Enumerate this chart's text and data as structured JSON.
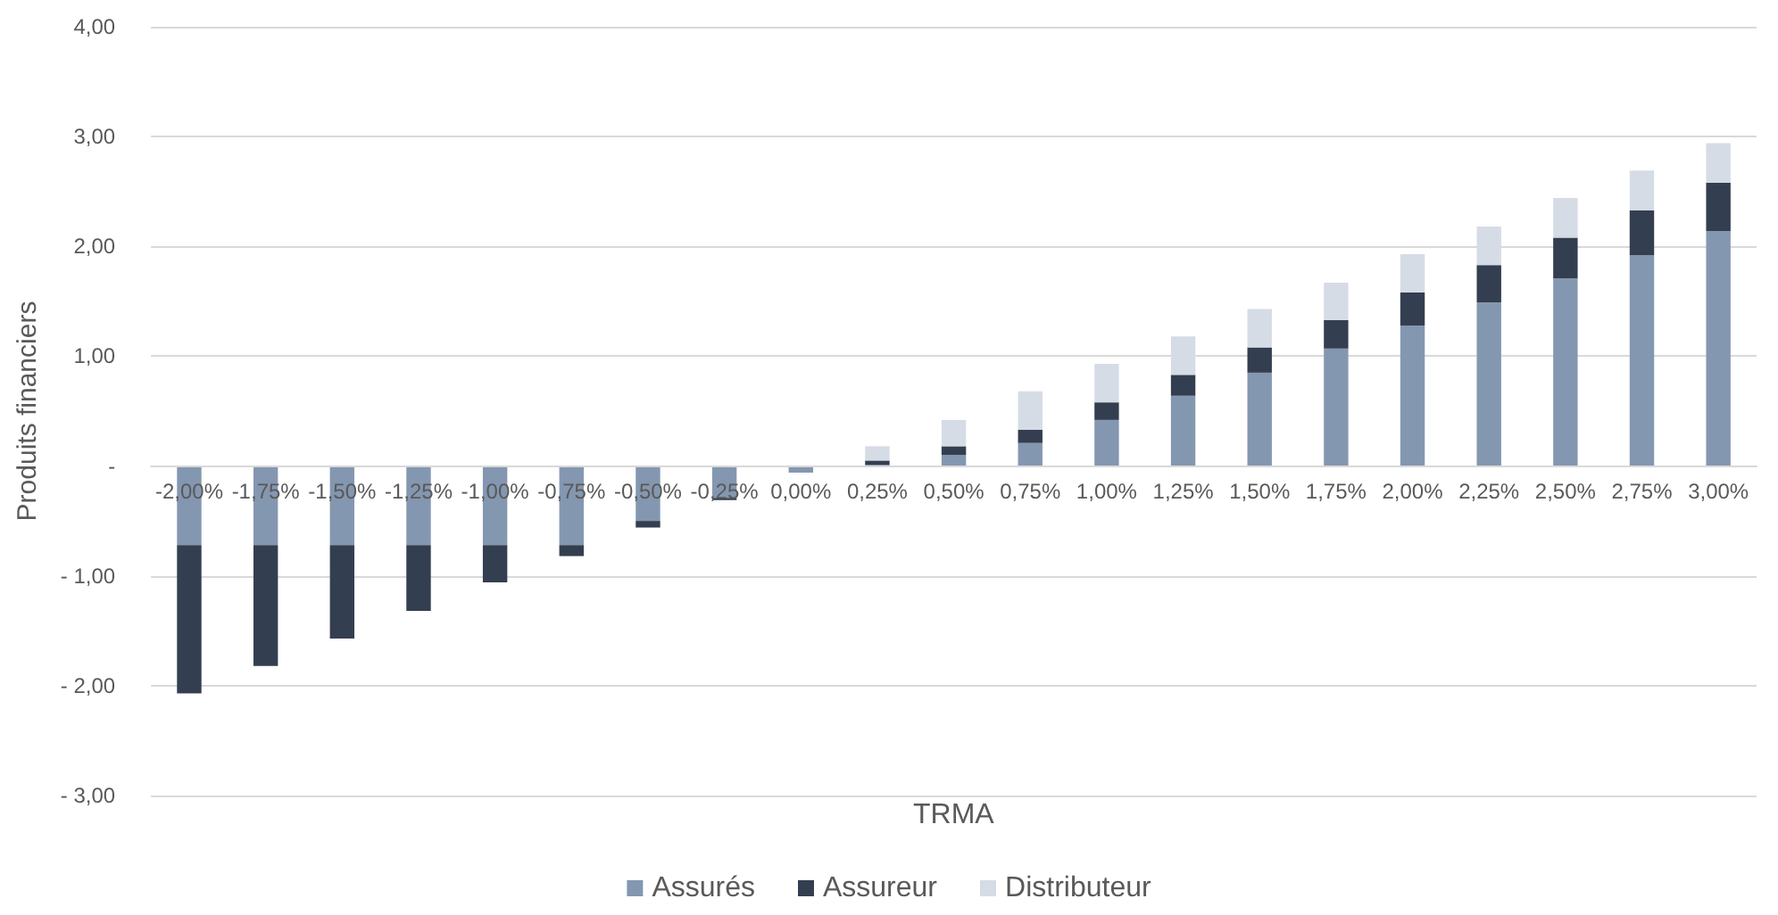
{
  "chart_data": {
    "type": "bar",
    "stacked": true,
    "xlabel": "TRMA",
    "ylabel": "Produits financiers",
    "categories": [
      "-2,00%",
      "-1,75%",
      "-1,50%",
      "-1,25%",
      "-1,00%",
      "-0,75%",
      "-0,50%",
      "-0,25%",
      "0,00%",
      "0,25%",
      "0,50%",
      "0,75%",
      "1,00%",
      "1,25%",
      "1,50%",
      "1,75%",
      "2,00%",
      "2,25%",
      "2,50%",
      "2,75%",
      "3,00%"
    ],
    "series": [
      {
        "name": "Assurés",
        "color": "#8497b0",
        "values": [
          -0.72,
          -0.72,
          -0.72,
          -0.72,
          -0.72,
          -0.72,
          -0.5,
          -0.29,
          -0.06,
          0.01,
          0.1,
          0.21,
          0.42,
          0.64,
          0.85,
          1.07,
          1.28,
          1.49,
          1.71,
          1.92,
          2.14
        ]
      },
      {
        "name": "Assureur",
        "color": "#333f50",
        "values": [
          -1.35,
          -1.1,
          -0.85,
          -0.6,
          -0.34,
          -0.1,
          -0.06,
          -0.02,
          0,
          0.04,
          0.08,
          0.12,
          0.16,
          0.19,
          0.23,
          0.26,
          0.3,
          0.34,
          0.37,
          0.41,
          0.44
        ]
      },
      {
        "name": "Distributeur",
        "color": "#d6dce5",
        "values": [
          0,
          0,
          0,
          0,
          0,
          0,
          0,
          0,
          0,
          0.13,
          0.24,
          0.35,
          0.35,
          0.35,
          0.35,
          0.34,
          0.35,
          0.35,
          0.36,
          0.36,
          0.36
        ]
      }
    ],
    "ylim": [
      -3,
      4
    ],
    "yticks": [
      {
        "value": -3,
        "label": "- 3,00"
      },
      {
        "value": -2,
        "label": "- 2,00"
      },
      {
        "value": -1,
        "label": "- 1,00"
      },
      {
        "value": 0,
        "label": "-"
      },
      {
        "value": 1,
        "label": "1,00"
      },
      {
        "value": 2,
        "label": "2,00"
      },
      {
        "value": 3,
        "label": "3,00"
      },
      {
        "value": 4,
        "label": "4,00"
      }
    ],
    "grid": "y",
    "legend": "bottom"
  }
}
